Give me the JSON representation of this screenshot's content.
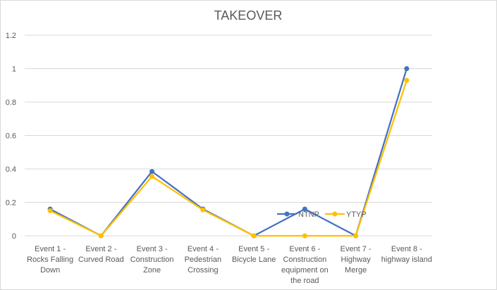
{
  "chart_data": {
    "type": "line",
    "title": "TAKEOVER",
    "xlabel": "",
    "ylabel": "",
    "ylim": [
      0,
      1.2
    ],
    "yticks": [
      "0",
      "0.2",
      "0.4",
      "0.6",
      "0.8",
      "1",
      "1.2"
    ],
    "grid": true,
    "legend_position": "bottom-right",
    "categories": [
      [
        "Event 1 -",
        "Rocks Falling",
        "Down"
      ],
      [
        "Event 2 -",
        "Curved Road"
      ],
      [
        "Event 3 -",
        "Construction",
        "Zone"
      ],
      [
        "Event 4 -",
        "Pedestrian",
        "Crossing"
      ],
      [
        "Event 5 -",
        "Bicycle Lane"
      ],
      [
        "Event 6 -",
        "Construction",
        "equipment on",
        "the road"
      ],
      [
        "Event 7 -",
        "Highway",
        "Merge"
      ],
      [
        "Event 8 -",
        "highway island"
      ]
    ],
    "series": [
      {
        "name": "NTNP",
        "color": "#4472C4",
        "values": [
          0.16,
          0.0,
          0.385,
          0.16,
          0.0,
          0.16,
          0.0,
          1.0
        ]
      },
      {
        "name": "YTYP",
        "color": "#FFC000",
        "values": [
          0.15,
          0.0,
          0.355,
          0.155,
          0.0,
          0.0,
          0.0,
          0.93
        ]
      }
    ]
  }
}
